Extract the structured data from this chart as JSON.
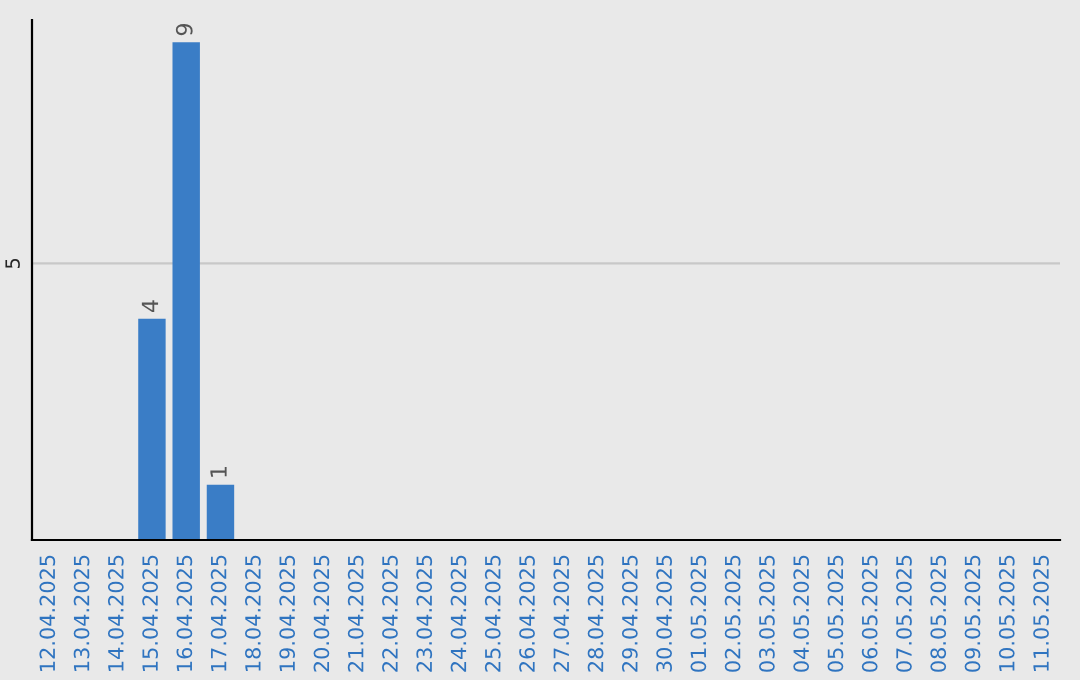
{
  "chart_data": {
    "type": "bar",
    "categories": [
      "12.04.2025",
      "13.04.2025",
      "14.04.2025",
      "15.04.2025",
      "16.04.2025",
      "17.04.2025",
      "18.04.2025",
      "19.04.2025",
      "20.04.2025",
      "21.04.2025",
      "22.04.2025",
      "23.04.2025",
      "24.04.2025",
      "25.04.2025",
      "26.04.2025",
      "27.04.2025",
      "28.04.2025",
      "29.04.2025",
      "30.04.2025",
      "01.05.2025",
      "02.05.2025",
      "03.05.2025",
      "04.05.2025",
      "05.05.2025",
      "06.05.2025",
      "07.05.2025",
      "08.05.2025",
      "09.05.2025",
      "10.05.2025",
      "11.05.2025"
    ],
    "values": [
      0,
      0,
      0,
      4,
      9,
      1,
      0,
      0,
      0,
      0,
      0,
      0,
      0,
      0,
      0,
      0,
      0,
      0,
      0,
      0,
      0,
      0,
      0,
      0,
      0,
      0,
      0,
      0,
      0,
      0
    ],
    "value_labels": [
      null,
      null,
      null,
      "4",
      "9",
      "1",
      null,
      null,
      null,
      null,
      null,
      null,
      null,
      null,
      null,
      null,
      null,
      null,
      null,
      null,
      null,
      null,
      null,
      null,
      null,
      null,
      null,
      null,
      null,
      null
    ],
    "color": "#3a7dc6",
    "ylim": [
      0,
      9.4
    ],
    "yticks": [
      5
    ],
    "grid": "y",
    "legend": false
  }
}
